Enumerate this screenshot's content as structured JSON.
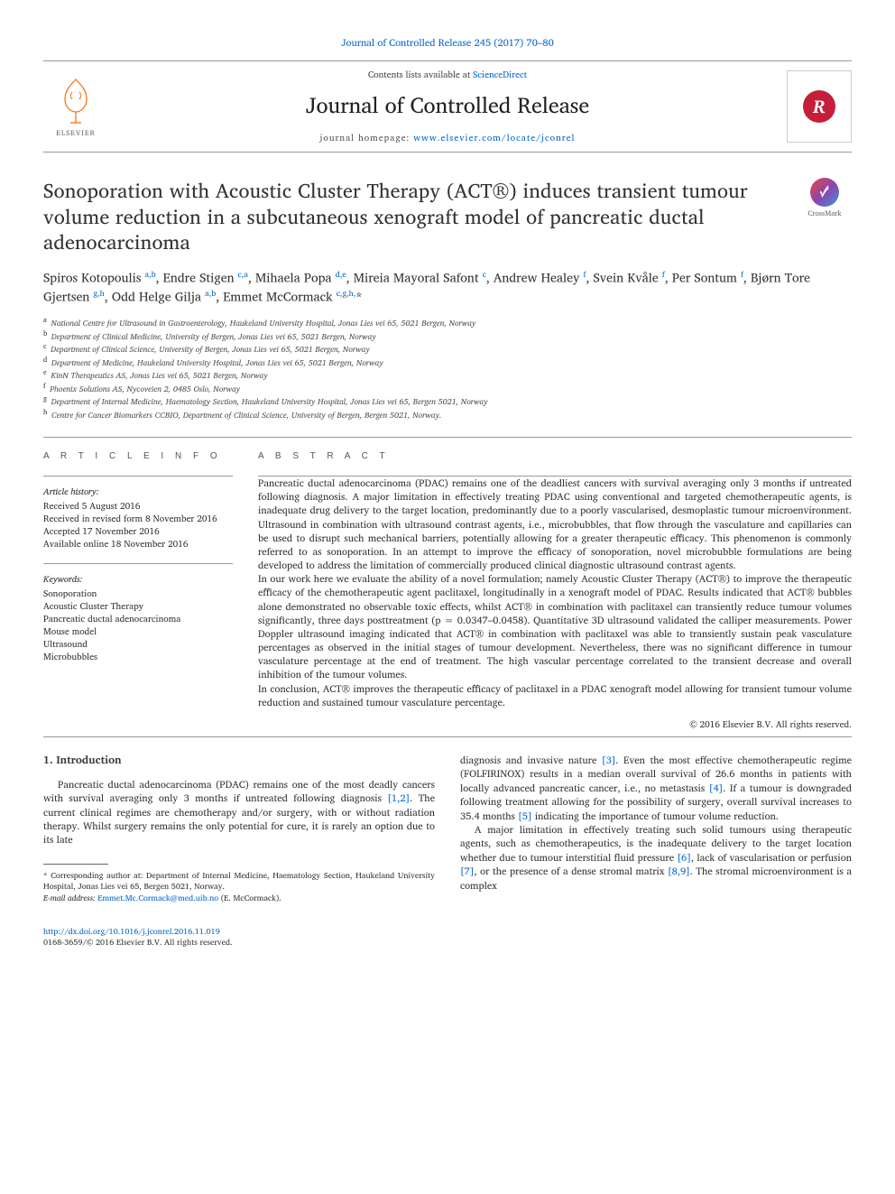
{
  "top_link": {
    "prefix": "",
    "text": "Journal of Controlled Release 245 (2017) 70–80",
    "href": "#"
  },
  "masthead": {
    "contents_prefix": "Contents lists available at ",
    "contents_link": "ScienceDirect",
    "journal_name": "Journal of Controlled Release",
    "homepage_prefix": "journal homepage: ",
    "homepage_link": "www.elsevier.com/locate/jconrel",
    "elsevier_label": "ELSEVIER"
  },
  "title": "Sonoporation with Acoustic Cluster Therapy (ACT®) induces transient tumour volume reduction in a subcutaneous xenograft model of pancreatic ductal adenocarcinoma",
  "crossmark_label": "CrossMark",
  "authors_html": "Spiros Kotopoulis <sup>a,b</sup>, Endre Stigen <sup>c,a</sup>, Mihaela Popa <sup>d,e</sup>, Mireia Mayoral Safont <sup>c</sup>, Andrew Healey <sup>f</sup>, Svein Kvåle <sup>f</sup>, Per Sontum <sup>f</sup>, Bjørn Tore Gjertsen <sup>g,h</sup>, Odd Helge Gilja <sup>a,b</sup>, Emmet McCormack <sup>c,g,h,</sup>*",
  "affiliations": [
    {
      "sup": "a",
      "text": "National Centre for Ultrasound in Gastroenterology, Haukeland University Hospital, Jonas Lies vei 65, 5021 Bergen, Norway"
    },
    {
      "sup": "b",
      "text": "Department of Clinical Medicine, University of Bergen, Jonas Lies vei 65, 5021 Bergen, Norway"
    },
    {
      "sup": "c",
      "text": "Department of Clinical Science, University of Bergen, Jonas Lies vei 65, 5021 Bergen, Norway"
    },
    {
      "sup": "d",
      "text": "Department of Medicine, Haukeland University Hospital, Jonas Lies vei 65, 5021 Bergen, Norway"
    },
    {
      "sup": "e",
      "text": "KinN Therapeutics AS, Jonas Lies vei 65, 5021 Bergen, Norway"
    },
    {
      "sup": "f",
      "text": "Phoenix Solutions AS, Nycoveien 2, 0485 Oslo, Norway"
    },
    {
      "sup": "g",
      "text": "Department of Internal Medicine, Haematology Section, Haukeland University Hospital, Jonas Lies vei 65, Bergen 5021, Norway"
    },
    {
      "sup": "h",
      "text": "Centre for Cancer Biomarkers CCBIO, Department of Clinical Science, University of Bergen, Bergen 5021, Norway."
    }
  ],
  "article_info": {
    "head": "A R T I C L E   I N F O",
    "history_head": "Article history:",
    "history": [
      "Received 5 August 2016",
      "Received in revised form 8 November 2016",
      "Accepted 17 November 2016",
      "Available online 18 November 2016"
    ],
    "keywords_head": "Keywords:",
    "keywords": [
      "Sonoporation",
      "Acoustic Cluster Therapy",
      "Pancreatic ductal adenocarcinoma",
      "Mouse model",
      "Ultrasound",
      "Microbubbles"
    ]
  },
  "abstract": {
    "head": "A B S T R A C T",
    "p1": "Pancreatic ductal adenocarcinoma (PDAC) remains one of the deadliest cancers with survival averaging only 3 months if untreated following diagnosis. A major limitation in effectively treating PDAC using conventional and targeted chemotherapeutic agents, is inadequate drug delivery to the target location, predominantly due to a poorly vascularised, desmoplastic tumour microenvironment. Ultrasound in combination with ultrasound contrast agents, i.e., microbubbles, that flow through the vasculature and capillaries can be used to disrupt such mechanical barriers, potentially allowing for a greater therapeutic efficacy. This phenomenon is commonly referred to as sonoporation. In an attempt to improve the efficacy of sonoporation, novel microbubble formulations are being developed to address the limitation of commercially produced clinical diagnostic ultrasound contrast agents.",
    "p2": "In our work here we evaluate the ability of a novel formulation; namely Acoustic Cluster Therapy (ACT®) to improve the therapeutic efficacy of the chemotherapeutic agent paclitaxel, longitudinally in a xenograft model of PDAC. Results indicated that ACT® bubbles alone demonstrated no observable toxic effects, whilst ACT® in combination with paclitaxel can transiently reduce tumour volumes significantly, three days posttreatment (p = 0.0347–0.0458). Quantitative 3D ultrasound validated the calliper measurements. Power Doppler ultrasound imaging indicated that ACT® in combination with paclitaxel was able to transiently sustain peak vasculature percentages as observed in the initial stages of tumour development. Nevertheless, there was no significant difference in tumour vasculature percentage at the end of treatment. The high vascular percentage correlated to the transient decrease and overall inhibition of the tumour volumes.",
    "p3": "In conclusion, ACT® improves the therapeutic efficacy of paclitaxel in a PDAC xenograft model allowing for transient tumour volume reduction and sustained tumour vasculature percentage.",
    "copyright": "© 2016 Elsevier B.V. All rights reserved."
  },
  "body": {
    "intro_head": "1. Introduction",
    "left_p": "Pancreatic ductal adenocarcinoma (PDAC) remains one of the most deadly cancers with survival averaging only 3 months if untreated following diagnosis [1,2]. The current clinical regimes are chemotherapy and/or surgery, with or without radiation therapy. Whilst surgery remains the only potential for cure, it is rarely an option due to its late",
    "right_p1": "diagnosis and invasive nature [3]. Even the most effective chemotherapeutic regime (FOLFIRINOX) results in a median overall survival of 26.6 months in patients with locally advanced pancreatic cancer, i.e., no metastasis [4]. If a tumour is downgraded following treatment allowing for the possibility of surgery, overall survival increases to 35.4 months [5] indicating the importance of tumour volume reduction.",
    "right_p2": "A major limitation in effectively treating such solid tumours using therapeutic agents, such as chemotherapeutics, is the inadequate delivery to the target location whether due to tumour interstitial fluid pressure [6], lack of vascularisation or perfusion [7], or the presence of a dense stromal matrix [8,9]. The stromal microenvironment is a complex",
    "refs": {
      "r12": "[1,2]",
      "r3": "[3]",
      "r4": "[4]",
      "r5": "[5]",
      "r6": "[6]",
      "r7": "[7]",
      "r89": "[8,9]"
    }
  },
  "footnotes": {
    "corr": "* Corresponding author at: Department of Internal Medicine, Haematology Section, Haukeland University Hospital, Jonas Lies vei 65, Bergen 5021, Norway.",
    "email_label": "E-mail address: ",
    "email": "Emmet.Mc.Cormack@med.uib.no",
    "email_suffix": " (E. McCormack)."
  },
  "footer": {
    "doi": "http://dx.doi.org/10.1016/j.jconrel.2016.11.019",
    "issn_line": "0168-3659/© 2016 Elsevier B.V. All rights reserved."
  },
  "colors": {
    "link": "#0066cc",
    "elsevier_orange": "#ff6b00",
    "cover_red": "#c41e3a",
    "rule_gray": "#999999",
    "text": "#333333"
  }
}
